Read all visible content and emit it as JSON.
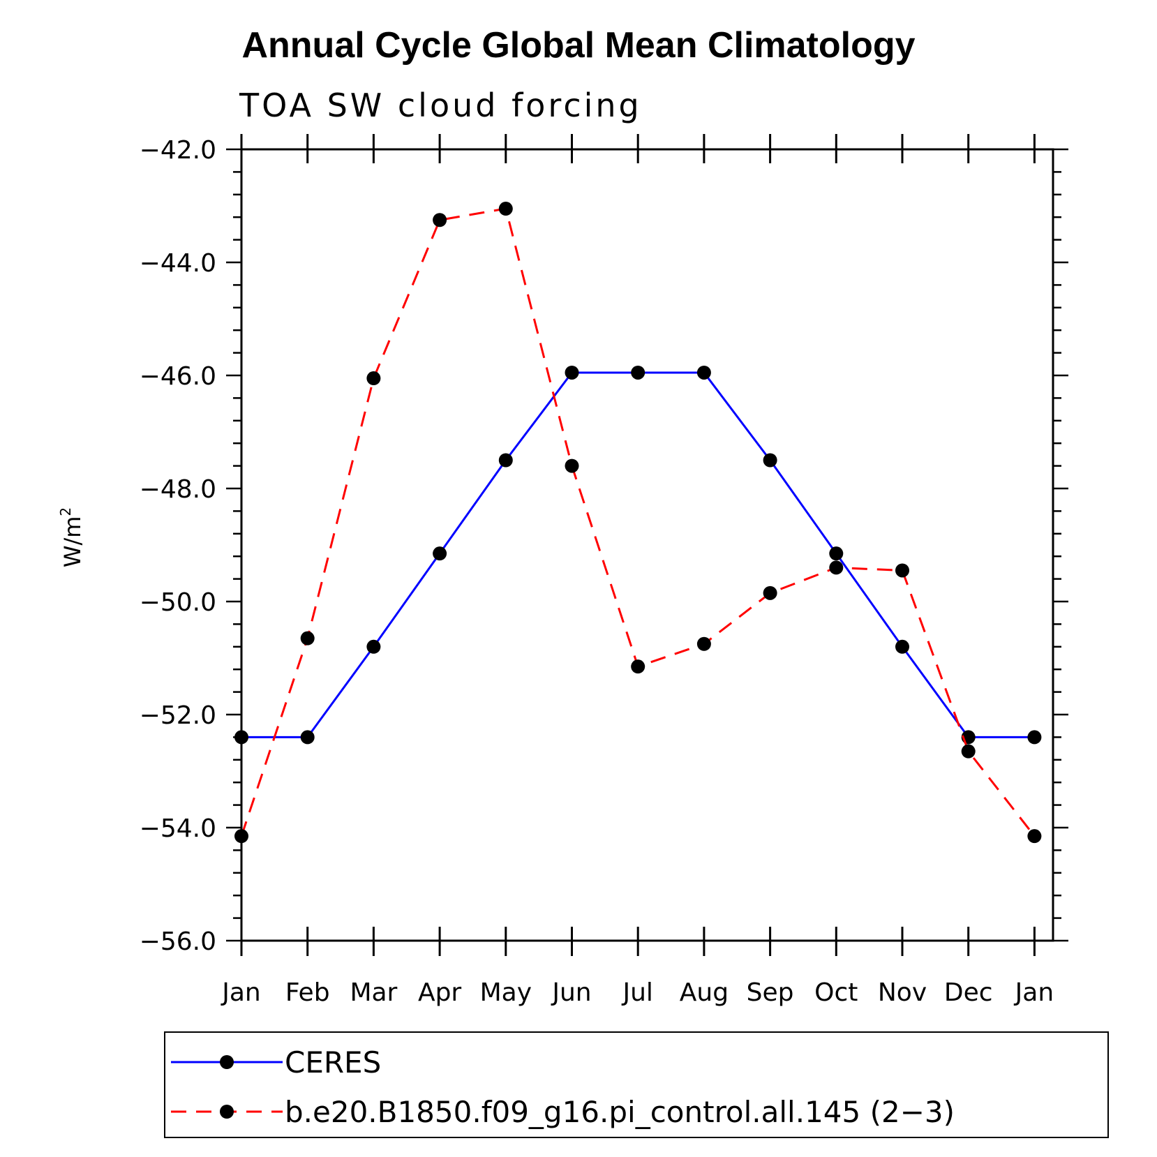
{
  "chart_data": {
    "type": "line",
    "title": "Annual Cycle Global Mean Climatology",
    "subtitle": "TOA SW cloud forcing",
    "ylabel_base": "W/m",
    "ylabel_sup": "2",
    "xlabel": "",
    "categories": [
      "Jan",
      "Feb",
      "Mar",
      "Apr",
      "May",
      "Jun",
      "Jul",
      "Aug",
      "Sep",
      "Oct",
      "Nov",
      "Dec",
      "Jan"
    ],
    "ylim": [
      -56.0,
      -42.0
    ],
    "yticks": [
      -42.0,
      -44.0,
      -46.0,
      -48.0,
      -50.0,
      -52.0,
      -54.0,
      -56.0
    ],
    "ytick_labels": [
      "−42.0",
      "−44.0",
      "−46.0",
      "−48.0",
      "−50.0",
      "−52.0",
      "−54.0",
      "−56.0"
    ],
    "grid": false,
    "legend_position": "bottom",
    "series": [
      {
        "name": "CERES",
        "color": "#0000ff",
        "dashed": false,
        "values": [
          -52.4,
          -52.4,
          -50.8,
          -49.15,
          -47.5,
          -45.95,
          -45.95,
          -45.95,
          -47.5,
          -49.15,
          -50.8,
          -52.4,
          -52.4
        ]
      },
      {
        "name": "b.e20.B1850.f09_g16.pi_control.all.145 (2−3)",
        "color": "#ff0000",
        "dashed": true,
        "values": [
          -54.15,
          -50.65,
          -46.05,
          -43.25,
          -43.05,
          -47.6,
          -51.15,
          -50.75,
          -49.85,
          -49.4,
          -49.45,
          -52.65,
          -54.15
        ]
      }
    ]
  }
}
